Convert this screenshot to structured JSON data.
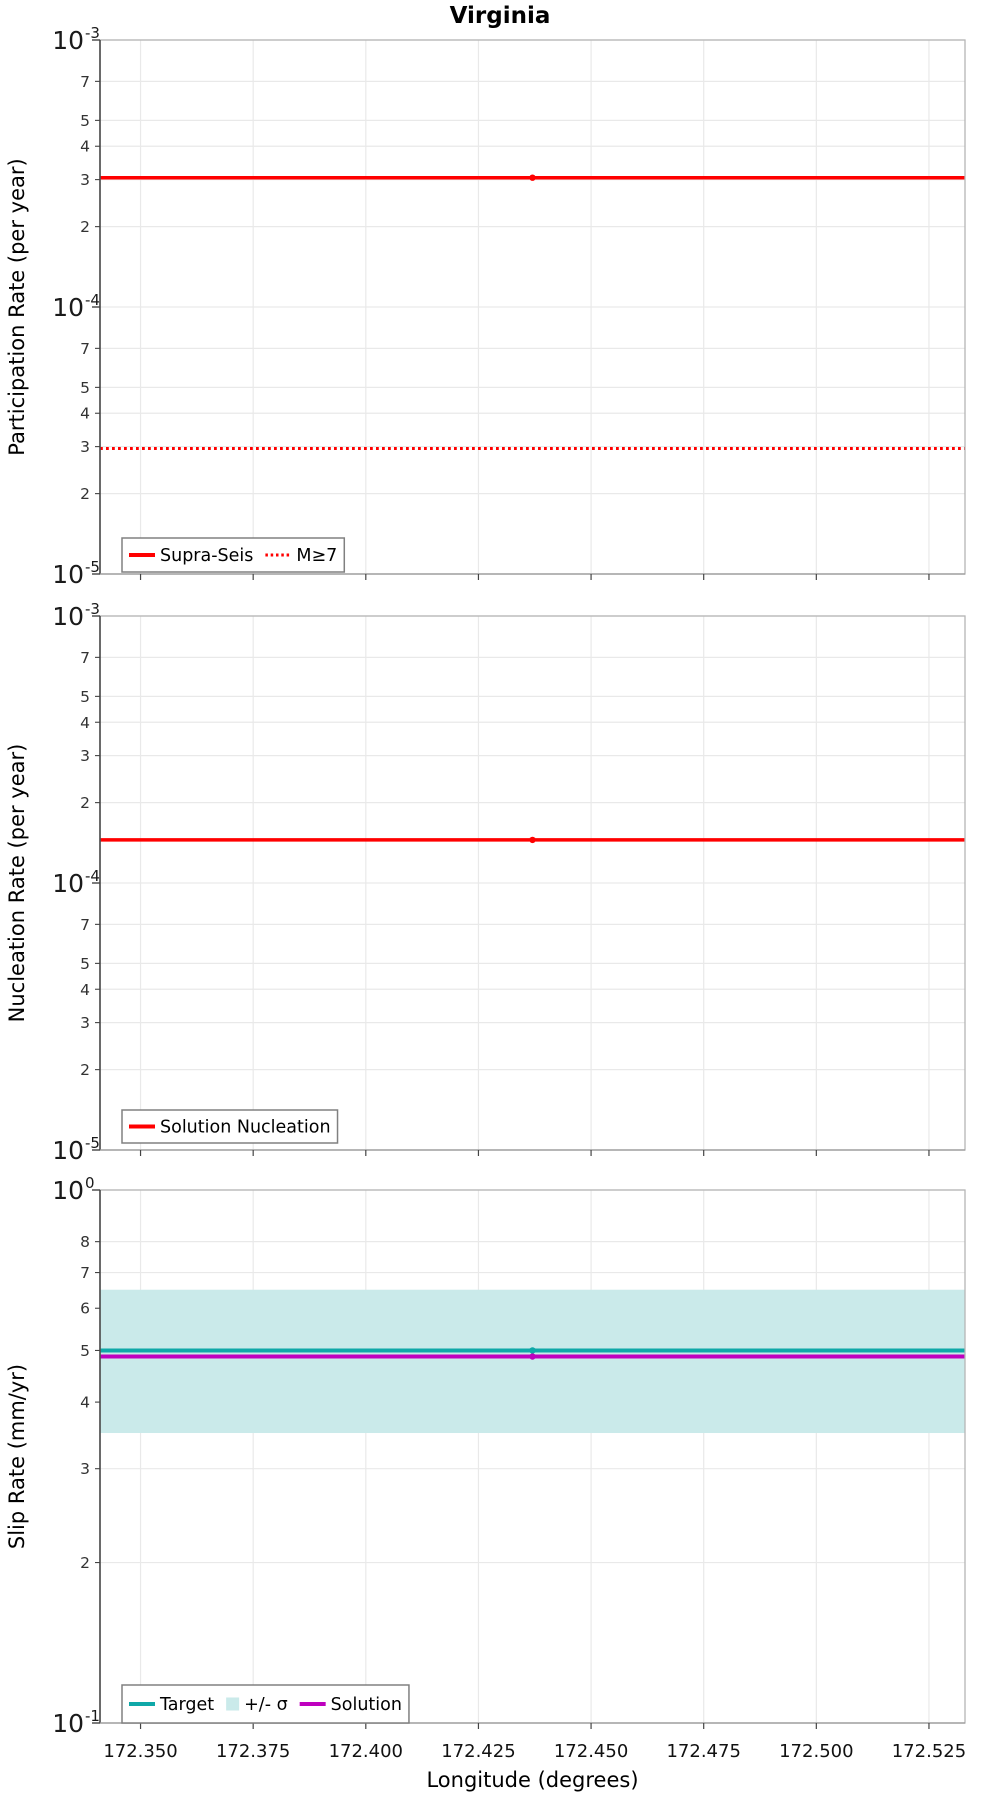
{
  "title": "Virginia",
  "x_axis": {
    "label": "Longitude (degrees)",
    "range": [
      172.341,
      172.533
    ],
    "ticks": [
      172.35,
      172.375,
      172.4,
      172.425,
      172.45,
      172.475,
      172.5,
      172.525
    ],
    "tick_labels": [
      "172.350",
      "172.375",
      "172.400",
      "172.425",
      "172.450",
      "172.475",
      "172.500",
      "172.525"
    ]
  },
  "colors": {
    "red": "#ff0000",
    "teal": "#0fa8a8",
    "magenta": "#be00be",
    "band": "#caeaea",
    "grid": "#e9e9e9",
    "panel_border": "#b5b5b5",
    "axis_spine": "#4a4a4a",
    "tick": "#444444",
    "legend_border": "#808080"
  },
  "chart_data": [
    {
      "name": "participation",
      "type": "line",
      "ylabel": "Participation Rate (per year)",
      "yscale": "log",
      "ylim": [
        1e-05,
        0.001
      ],
      "y_major_exponents": [
        -3,
        -4,
        -5
      ],
      "y_labeled_minor_digits": [
        7,
        5,
        4,
        3,
        2
      ],
      "y_tick_labels": [
        "10^-3",
        "7",
        "5",
        "4",
        "3",
        "2",
        "10^-4",
        "7",
        "5",
        "4",
        "3",
        "2",
        "10^-5"
      ],
      "series": [
        {
          "label": "Supra-Seis",
          "color": "#ff0000",
          "style": "solid",
          "width": 3.5,
          "y": 0.000305,
          "marker_lon": 172.437
        },
        {
          "label": "M≥7",
          "color": "#ff0000",
          "style": "dotted",
          "width": 3,
          "y": 2.95e-05
        }
      ],
      "legend": [
        {
          "label": "Supra-Seis",
          "swatch": "line-solid",
          "color": "#ff0000"
        },
        {
          "label": "M≥7",
          "swatch": "line-dotted",
          "color": "#ff0000"
        }
      ]
    },
    {
      "name": "nucleation",
      "type": "line",
      "ylabel": "Nucleation Rate (per year)",
      "yscale": "log",
      "ylim": [
        1e-05,
        0.001
      ],
      "y_major_exponents": [
        -3,
        -4,
        -5
      ],
      "y_labeled_minor_digits": [
        7,
        5,
        4,
        3,
        2
      ],
      "y_tick_labels": [
        "10^-3",
        "7",
        "5",
        "4",
        "3",
        "2",
        "10^-4",
        "7",
        "5",
        "4",
        "3",
        "2",
        "10^-5"
      ],
      "series": [
        {
          "label": "Solution Nucleation",
          "color": "#ff0000",
          "style": "solid",
          "width": 3.5,
          "y": 0.000145,
          "marker_lon": 172.437
        }
      ],
      "legend": [
        {
          "label": "Solution Nucleation",
          "swatch": "line-solid",
          "color": "#ff0000"
        }
      ]
    },
    {
      "name": "slip-rate",
      "type": "line",
      "ylabel": "Slip Rate (mm/yr)",
      "yscale": "log",
      "ylim": [
        0.1,
        1.0
      ],
      "y_major_exponents": [
        0,
        -1
      ],
      "y_labeled_minor_digits": [
        8,
        7,
        6,
        5,
        4,
        3,
        2
      ],
      "y_tick_labels": [
        "10^0",
        "8",
        "7",
        "6",
        "5",
        "4",
        "3",
        "2",
        "10^-1"
      ],
      "series": [
        {
          "label": "+/- σ",
          "kind": "band",
          "color": "#caeaea",
          "y_range": [
            0.35,
            0.65
          ]
        },
        {
          "label": "Target",
          "color": "#0fa8a8",
          "style": "solid",
          "width": 4,
          "y": 0.5,
          "marker_lon": 172.437
        },
        {
          "label": "Solution",
          "color": "#be00be",
          "style": "solid",
          "width": 4,
          "y": 0.487,
          "marker_lon": 172.437
        }
      ],
      "legend": [
        {
          "label": "Target",
          "swatch": "line-solid",
          "color": "#0fa8a8"
        },
        {
          "label": "+/- σ",
          "swatch": "patch",
          "color": "#caeaea"
        },
        {
          "label": "Solution",
          "swatch": "line-solid",
          "color": "#be00be"
        }
      ]
    }
  ]
}
